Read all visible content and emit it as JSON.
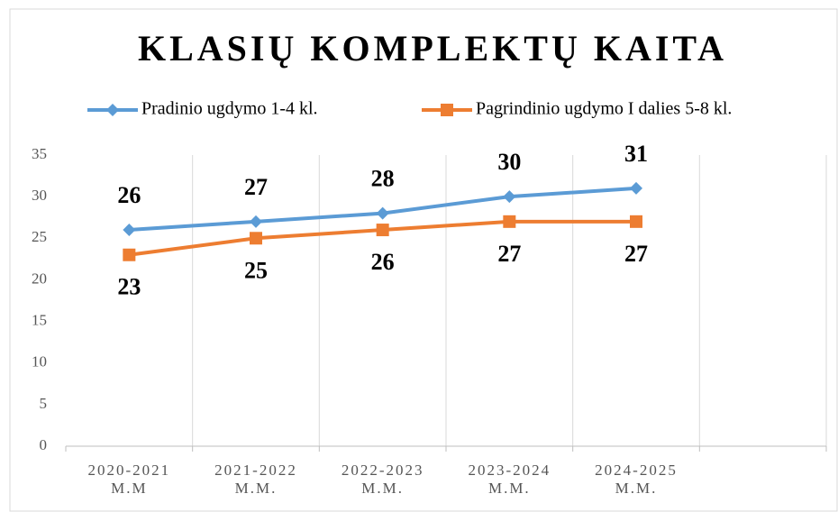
{
  "chart_data": {
    "type": "line",
    "title": "KLASIŲ KOMPLEKTŲ KAITA",
    "categories": [
      "2020-2021\nM.M",
      "2021-2022\nM.M.",
      "2022-2023\nM.M.",
      "2023-2024\nM.M.",
      "2024-2025\nM.M.",
      null
    ],
    "series": [
      {
        "name": "Pradinio ugdymo 1-4 kl.",
        "color": "#5b9bd5",
        "marker": "diamond",
        "label_position": "above",
        "values": [
          26,
          27,
          28,
          30,
          31,
          null
        ]
      },
      {
        "name": "Pagrindinio ugdymo I dalies 5-8 kl.",
        "color": "#ed7d31",
        "marker": "square",
        "label_position": "below",
        "values": [
          23,
          25,
          26,
          27,
          27,
          null
        ]
      }
    ],
    "ylim": [
      0,
      35
    ],
    "yticks": [
      0,
      5,
      10,
      15,
      20,
      25,
      30,
      35
    ],
    "legend": "top",
    "grid": "vertical"
  }
}
